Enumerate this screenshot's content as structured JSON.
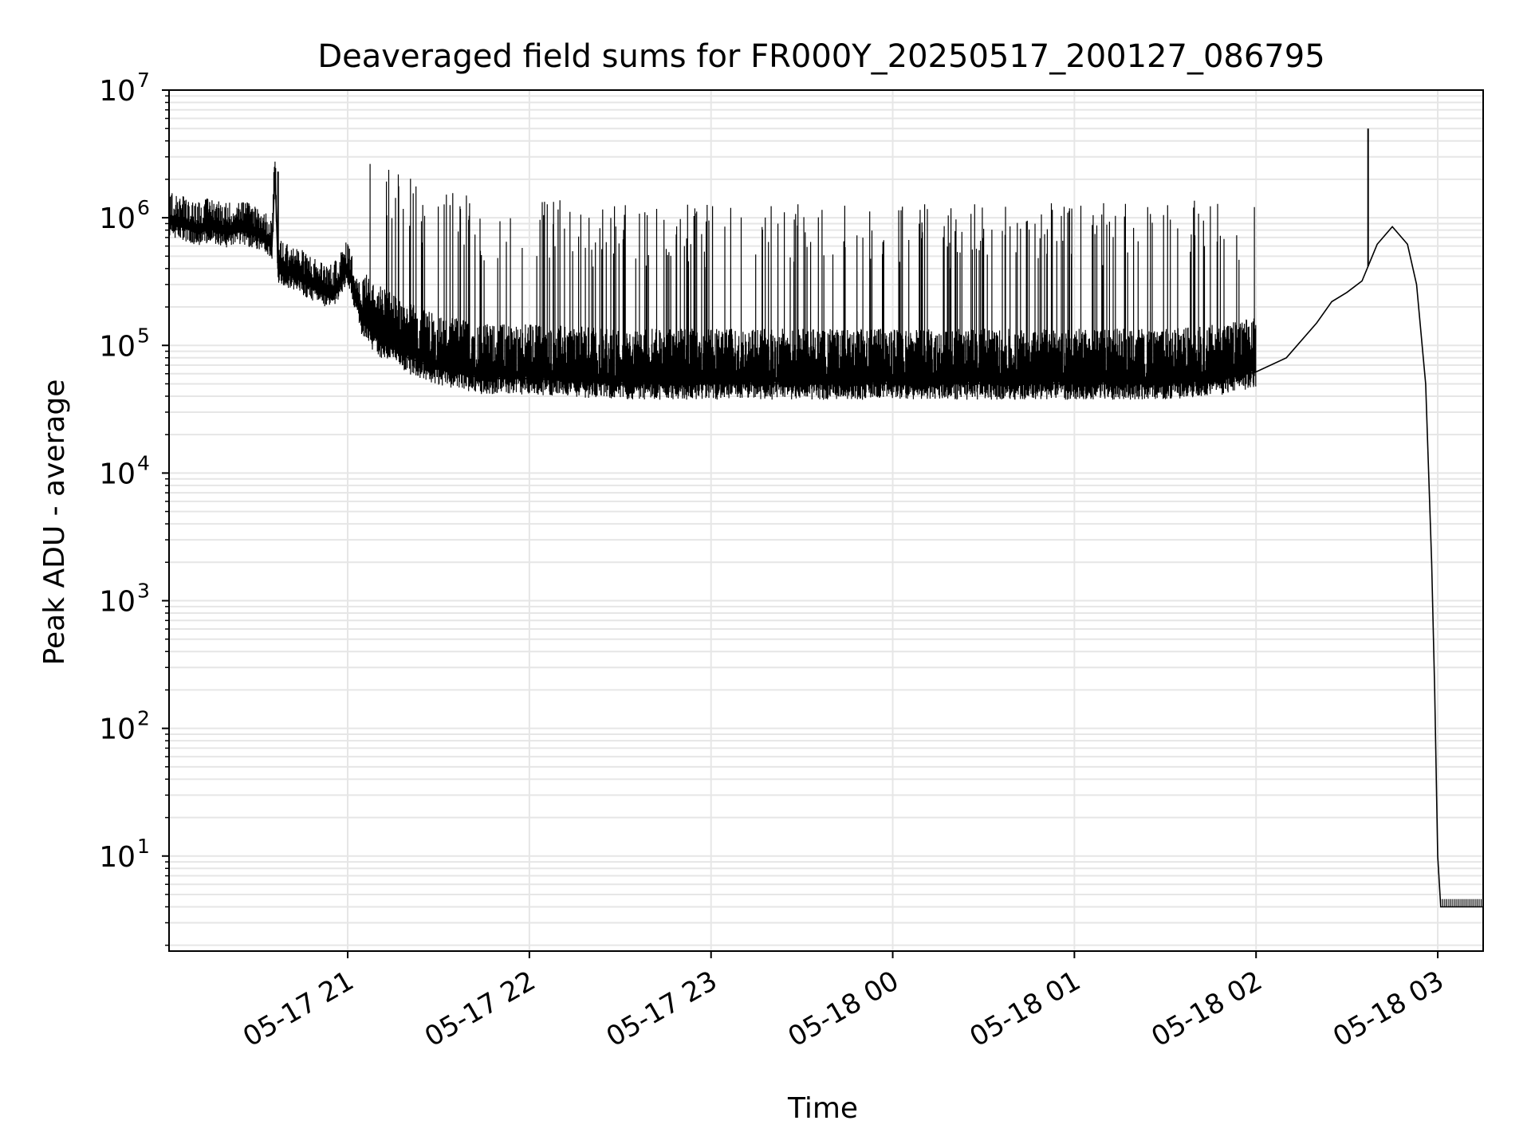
{
  "chart_data": {
    "type": "line",
    "title": "Deaveraged field sums for FR000Y_20250517_200127_086795",
    "xlabel": "Time",
    "ylabel": "Peak ADU - average",
    "yscale": "log",
    "ylim": [
      1.8,
      10000000
    ],
    "xlim": [
      "2025-05-17 20:01",
      "2025-05-18 03:15"
    ],
    "grid": true,
    "line_color": "#000000",
    "grid_color": "#e6e6e6",
    "x_ticks": [
      {
        "t": "2025-05-17 21:00",
        "label": "05-17 21"
      },
      {
        "t": "2025-05-17 22:00",
        "label": "05-17 22"
      },
      {
        "t": "2025-05-17 23:00",
        "label": "05-17 23"
      },
      {
        "t": "2025-05-18 00:00",
        "label": "05-18 00"
      },
      {
        "t": "2025-05-18 01:00",
        "label": "05-18 01"
      },
      {
        "t": "2025-05-18 02:00",
        "label": "05-18 02"
      },
      {
        "t": "2025-05-18 03:00",
        "label": "05-18 03"
      }
    ],
    "y_ticks": [
      {
        "value": 10,
        "base": "10",
        "exp": "1"
      },
      {
        "value": 100,
        "base": "10",
        "exp": "2"
      },
      {
        "value": 1000,
        "base": "10",
        "exp": "3"
      },
      {
        "value": 10000,
        "base": "10",
        "exp": "4"
      },
      {
        "value": 100000,
        "base": "10",
        "exp": "5"
      },
      {
        "value": 1000000,
        "base": "10",
        "exp": "6"
      },
      {
        "value": 10000000,
        "base": "10",
        "exp": "7"
      }
    ],
    "series": [
      {
        "name": "",
        "x": [
          "2025-05-17 20:01",
          "2025-05-17 20:05",
          "2025-05-17 20:10",
          "2025-05-17 20:15",
          "2025-05-17 20:20",
          "2025-05-17 20:25",
          "2025-05-17 20:30",
          "2025-05-17 20:35",
          "2025-05-17 20:36",
          "2025-05-17 20:37",
          "2025-05-17 20:40",
          "2025-05-17 20:45",
          "2025-05-17 20:50",
          "2025-05-17 20:55",
          "2025-05-17 21:00",
          "2025-05-17 21:05",
          "2025-05-17 21:10",
          "2025-05-17 21:15",
          "2025-05-17 21:20",
          "2025-05-17 21:30",
          "2025-05-17 21:45",
          "2025-05-17 22:00",
          "2025-05-17 22:30",
          "2025-05-17 23:00",
          "2025-05-17 23:30",
          "2025-05-18 00:00",
          "2025-05-18 00:30",
          "2025-05-18 01:00",
          "2025-05-18 01:30",
          "2025-05-18 01:50",
          "2025-05-18 02:00",
          "2025-05-18 02:10",
          "2025-05-18 02:20",
          "2025-05-18 02:25",
          "2025-05-18 02:30",
          "2025-05-18 02:35",
          "2025-05-18 02:40",
          "2025-05-18 02:45",
          "2025-05-18 02:50",
          "2025-05-18 02:53",
          "2025-05-18 02:56",
          "2025-05-18 02:58",
          "2025-05-18 02:59",
          "2025-05-18 03:00",
          "2025-05-18 03:01",
          "2025-05-18 03:15"
        ],
        "y": [
          950000,
          900000,
          800000,
          850000,
          780000,
          820000,
          750000,
          600000,
          2300000,
          400000,
          380000,
          330000,
          280000,
          250000,
          400000,
          150000,
          110000,
          95000,
          80000,
          65000,
          55000,
          55000,
          50000,
          50000,
          50000,
          50000,
          50000,
          50000,
          50000,
          55000,
          62000,
          80000,
          150000,
          220000,
          260000,
          320000,
          620000,
          850000,
          620000,
          300000,
          50000,
          2000,
          200,
          10,
          4,
          4
        ]
      }
    ],
    "spikes": [
      {
        "t": "2025-05-17 20:37",
        "value": 2300000
      },
      {
        "t": "2025-05-18 02:37",
        "value": 5000000
      }
    ]
  }
}
